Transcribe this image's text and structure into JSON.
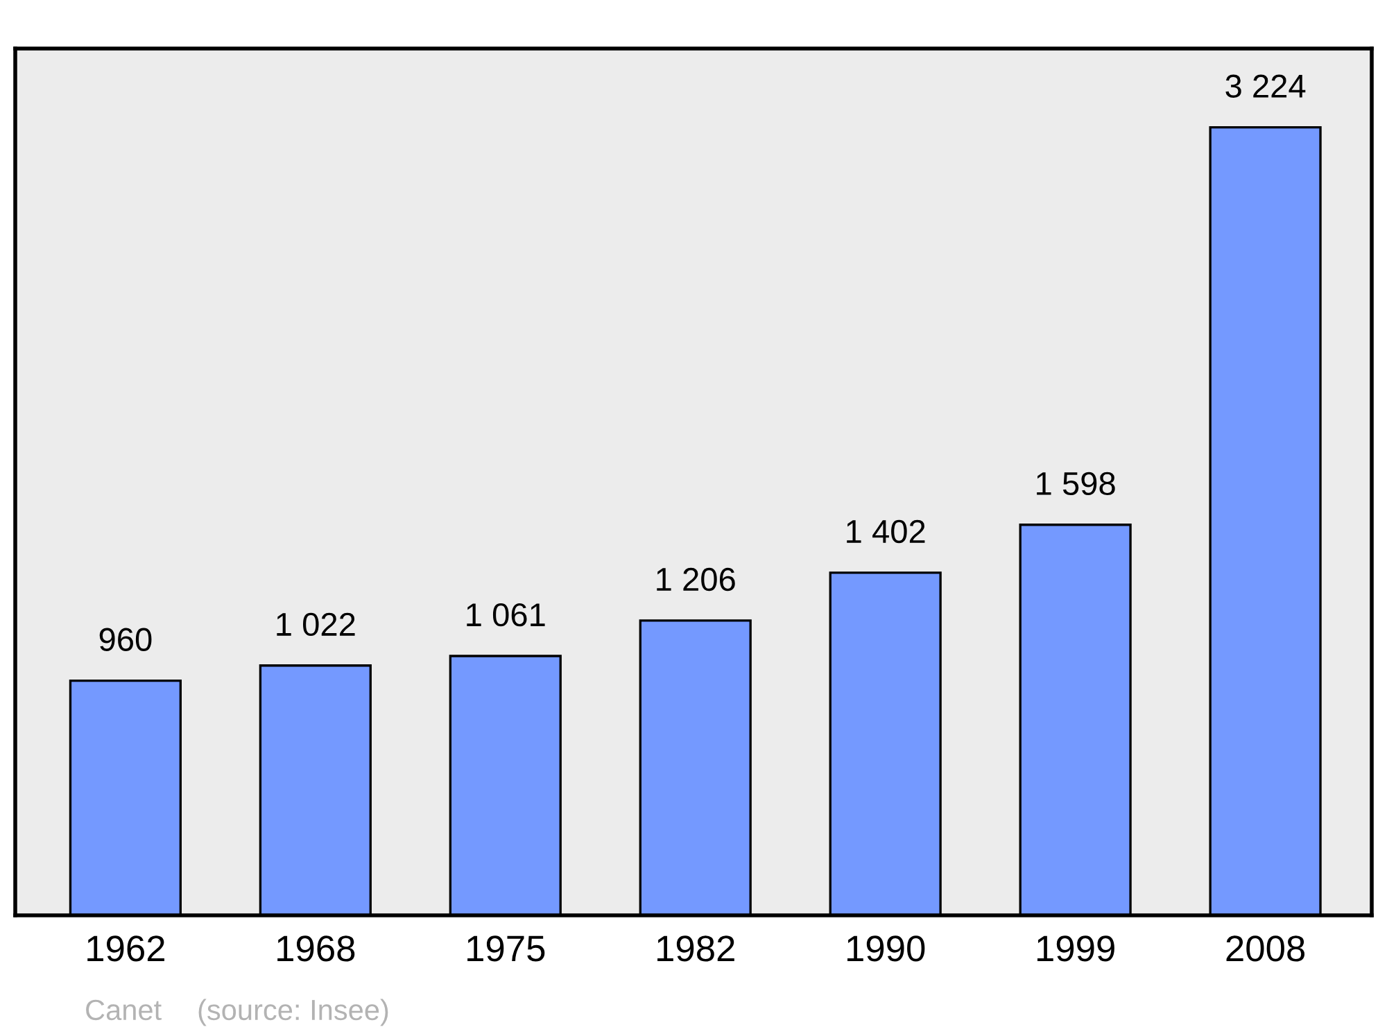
{
  "chart_data": {
    "type": "bar",
    "categories": [
      "1962",
      "1968",
      "1975",
      "1982",
      "1990",
      "1999",
      "2008"
    ],
    "values": [
      960,
      1022,
      1061,
      1206,
      1402,
      1598,
      3224
    ],
    "value_labels": [
      "960",
      "1 022",
      "1 061",
      "1 206",
      "1 402",
      "1 598",
      "3 224"
    ],
    "color": "#7499ff",
    "annotations": [
      "Canet",
      "(source: Insee)"
    ],
    "grid": false,
    "legend": false,
    "tick_labels": "x"
  }
}
